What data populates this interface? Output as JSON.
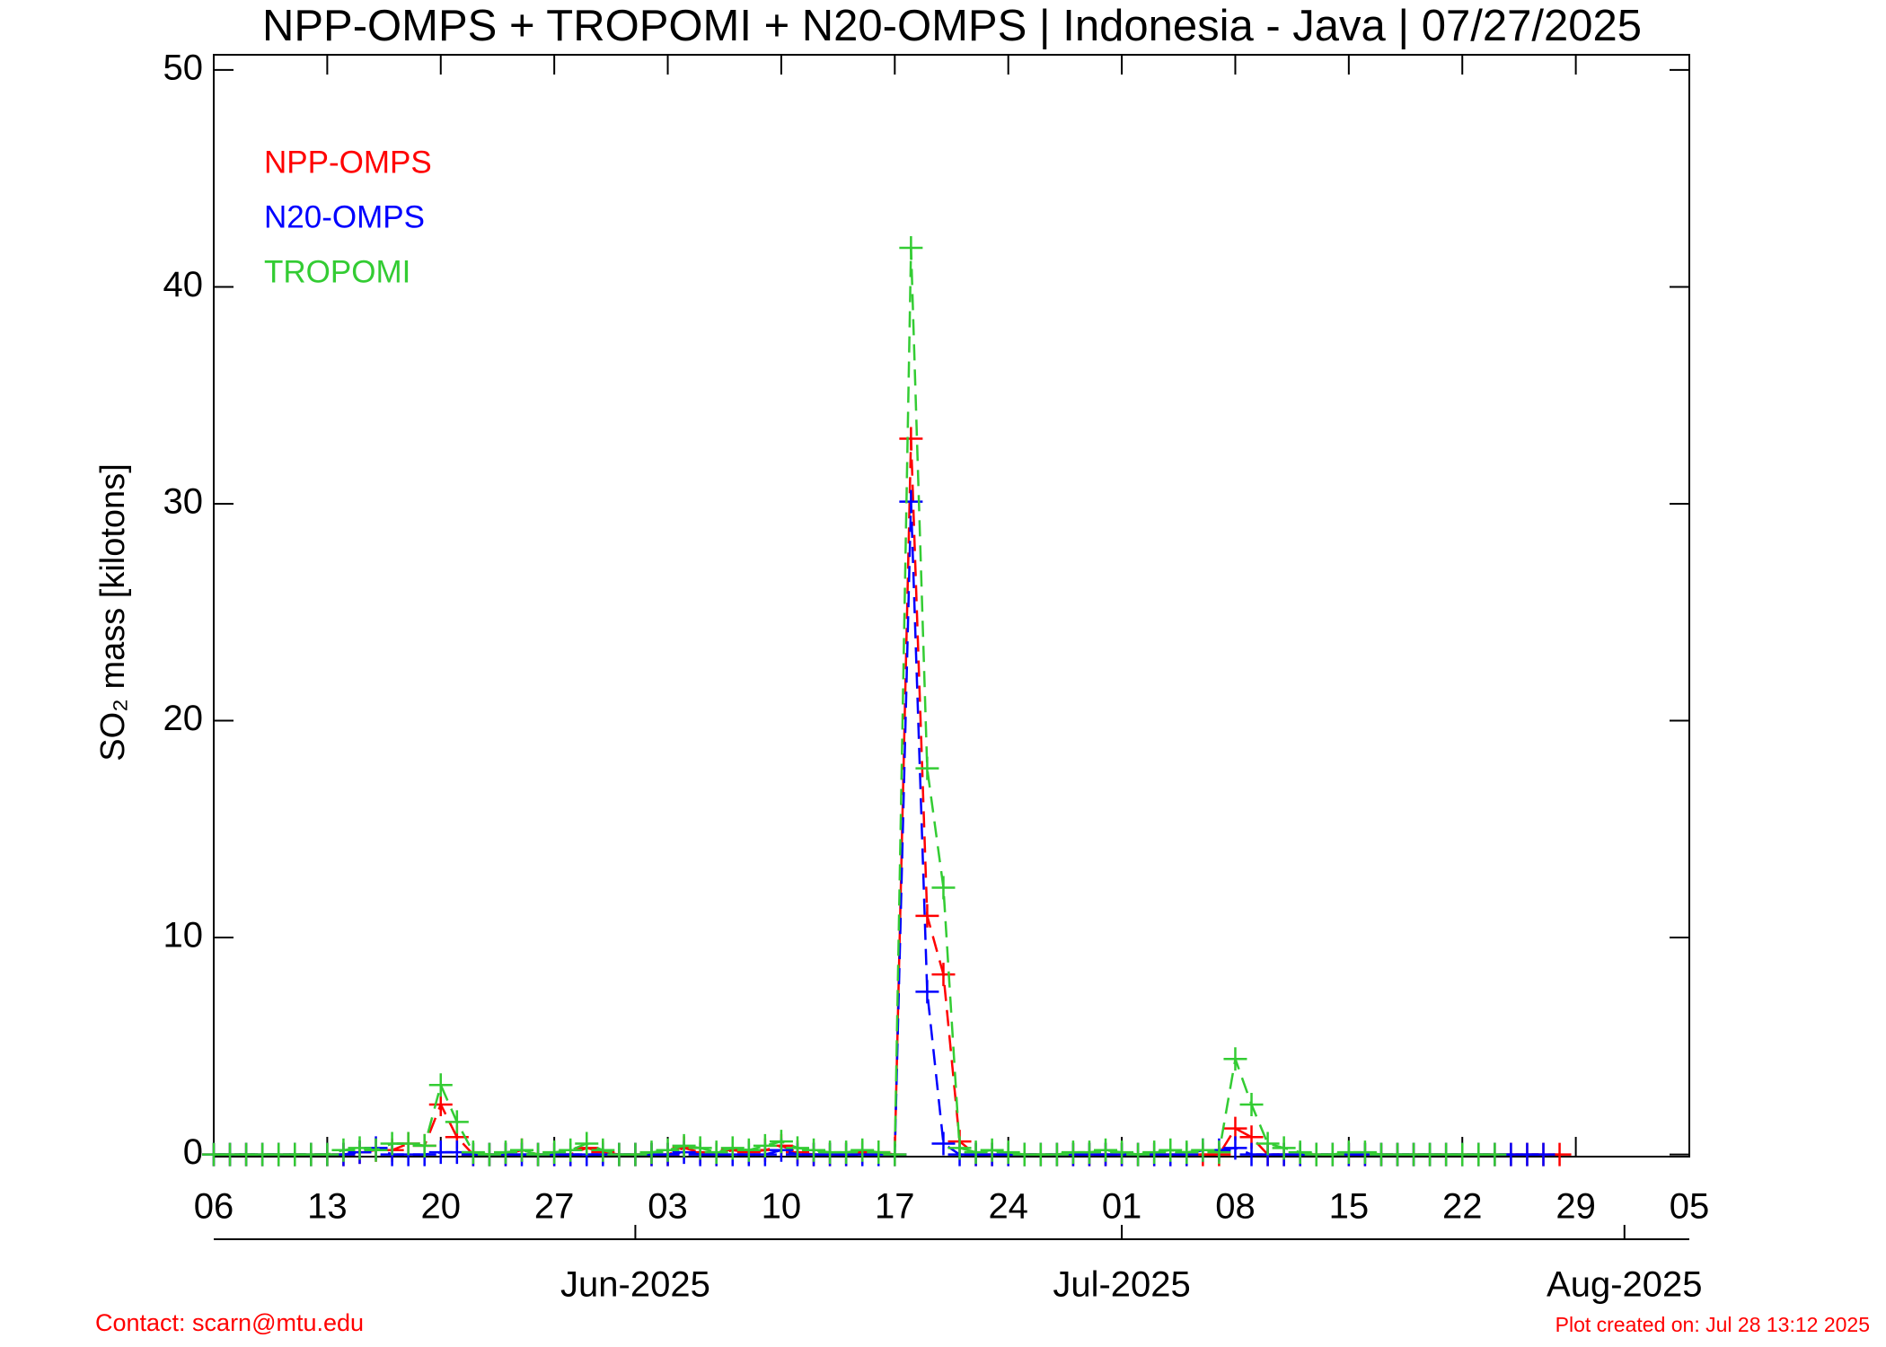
{
  "chart_data": {
    "type": "line",
    "title": "NPP-OMPS + TROPOMI + N20-OMPS | Indonesia - Java | 07/27/2025",
    "y_label": "SO₂ mass [kilotons]",
    "contact": "Contact: scarn@mtu.edu",
    "created": "Plot created on: Jul 28 13:12 2025",
    "xlim": [
      "2025-05-06",
      "2025-08-05"
    ],
    "ylim": [
      -0.1,
      50.7
    ],
    "yticks": [
      0,
      10,
      20,
      30,
      40,
      50
    ],
    "xticks": [
      {
        "value": "2025-05-06",
        "label": "06"
      },
      {
        "value": "2025-05-13",
        "label": "13"
      },
      {
        "value": "2025-05-20",
        "label": "20"
      },
      {
        "value": "2025-05-27",
        "label": "27"
      },
      {
        "value": "2025-06-03",
        "label": "03"
      },
      {
        "value": "2025-06-10",
        "label": "10"
      },
      {
        "value": "2025-06-17",
        "label": "17"
      },
      {
        "value": "2025-06-24",
        "label": "24"
      },
      {
        "value": "2025-07-01",
        "label": "01"
      },
      {
        "value": "2025-07-08",
        "label": "08"
      },
      {
        "value": "2025-07-15",
        "label": "15"
      },
      {
        "value": "2025-07-22",
        "label": "22"
      },
      {
        "value": "2025-07-29",
        "label": "29"
      },
      {
        "value": "2025-08-05",
        "label": "05"
      }
    ],
    "month_ticks": [
      {
        "value": "2025-06-01",
        "label": "Jun-2025"
      },
      {
        "value": "2025-07-01",
        "label": "Jul-2025"
      },
      {
        "value": "2025-08-01",
        "label": "Aug-2025"
      }
    ],
    "x": [
      "2025-05-06",
      "2025-05-07",
      "2025-05-08",
      "2025-05-09",
      "2025-05-10",
      "2025-05-11",
      "2025-05-12",
      "2025-05-13",
      "2025-05-14",
      "2025-05-15",
      "2025-05-16",
      "2025-05-17",
      "2025-05-18",
      "2025-05-19",
      "2025-05-20",
      "2025-05-21",
      "2025-05-22",
      "2025-05-23",
      "2025-05-24",
      "2025-05-25",
      "2025-05-26",
      "2025-05-27",
      "2025-05-28",
      "2025-05-29",
      "2025-05-30",
      "2025-05-31",
      "2025-06-01",
      "2025-06-02",
      "2025-06-03",
      "2025-06-04",
      "2025-06-05",
      "2025-06-06",
      "2025-06-07",
      "2025-06-08",
      "2025-06-09",
      "2025-06-10",
      "2025-06-11",
      "2025-06-12",
      "2025-06-13",
      "2025-06-14",
      "2025-06-15",
      "2025-06-16",
      "2025-06-17",
      "2025-06-18",
      "2025-06-19",
      "2025-06-20",
      "2025-06-21",
      "2025-06-22",
      "2025-06-23",
      "2025-06-24",
      "2025-06-25",
      "2025-06-26",
      "2025-06-27",
      "2025-06-28",
      "2025-06-29",
      "2025-06-30",
      "2025-07-01",
      "2025-07-02",
      "2025-07-03",
      "2025-07-04",
      "2025-07-05",
      "2025-07-06",
      "2025-07-07",
      "2025-07-08",
      "2025-07-09",
      "2025-07-10",
      "2025-07-11",
      "2025-07-12",
      "2025-07-13",
      "2025-07-14",
      "2025-07-15",
      "2025-07-16",
      "2025-07-17",
      "2025-07-18",
      "2025-07-19",
      "2025-07-20",
      "2025-07-21",
      "2025-07-22",
      "2025-07-23",
      "2025-07-24",
      "2025-07-25",
      "2025-07-26",
      "2025-07-27",
      "2025-07-28"
    ],
    "series": [
      {
        "name": "NPP-OMPS",
        "color": "#ff0000",
        "values": [
          0,
          0,
          0,
          0,
          0,
          0,
          0,
          0,
          0,
          0.1,
          0.2,
          0.2,
          0.5,
          0.4,
          2.3,
          0.8,
          0,
          0,
          0,
          0.2,
          0,
          0,
          0,
          0.3,
          0.1,
          0,
          0,
          0,
          0,
          0.3,
          0.1,
          0,
          0.2,
          0.1,
          0.2,
          0.4,
          0.1,
          0,
          0,
          0,
          0.1,
          0.1,
          0,
          33,
          11,
          8.3,
          0.6,
          0,
          0,
          0,
          0,
          0,
          0,
          0,
          0,
          0,
          0,
          0,
          0,
          0,
          0,
          0,
          0,
          1.2,
          0.8,
          0,
          0,
          0,
          0,
          0,
          0,
          0,
          0,
          0,
          0,
          0,
          0,
          0,
          0,
          0,
          0,
          0,
          0,
          0
        ]
      },
      {
        "name": "N20-OMPS",
        "color": "#0000ff",
        "values": [
          0,
          0,
          0,
          0,
          0,
          0,
          0,
          0,
          0,
          0.1,
          0.3,
          0,
          0,
          0,
          0.1,
          0.1,
          0,
          0,
          0,
          0,
          0,
          0,
          0,
          0,
          0,
          0,
          0,
          0,
          0,
          0.1,
          0,
          0,
          0,
          0,
          0,
          0.2,
          0,
          0,
          0,
          0,
          0,
          0,
          0,
          30.1,
          7.5,
          0.5,
          0,
          0,
          0,
          0,
          0,
          0,
          0,
          0,
          0,
          0,
          0,
          0,
          0,
          0,
          0,
          0.2,
          0.2,
          0.3,
          0,
          0,
          0,
          0,
          0,
          0,
          0,
          0,
          0,
          0,
          0,
          0,
          0,
          0,
          0,
          0,
          0,
          0,
          0,
          null
        ]
      },
      {
        "name": "TROPOMI",
        "color": "#33cc33",
        "values": [
          0,
          0,
          0,
          0,
          0,
          0,
          0,
          0,
          0.2,
          0.3,
          0.2,
          0.5,
          0.5,
          0.4,
          3.2,
          1.5,
          0.1,
          0,
          0.1,
          0.2,
          0,
          0.1,
          0.2,
          0.5,
          0.2,
          0,
          0,
          0.1,
          0.2,
          0.4,
          0.3,
          0.1,
          0.3,
          0.2,
          0.4,
          0.6,
          0.3,
          0.2,
          0.1,
          0.1,
          0.2,
          0.1,
          0,
          41.8,
          17.8,
          12.3,
          0.3,
          0.1,
          0.2,
          0.1,
          0,
          0,
          0,
          0.1,
          0.1,
          0.2,
          0.1,
          0,
          0.1,
          0.2,
          0.1,
          0.2,
          0.1,
          4.4,
          2.3,
          0.5,
          0.3,
          0.1,
          0,
          0,
          0.1,
          0.1,
          0,
          0,
          0,
          0,
          0,
          0,
          0,
          0,
          null,
          null,
          null,
          null
        ]
      }
    ]
  }
}
